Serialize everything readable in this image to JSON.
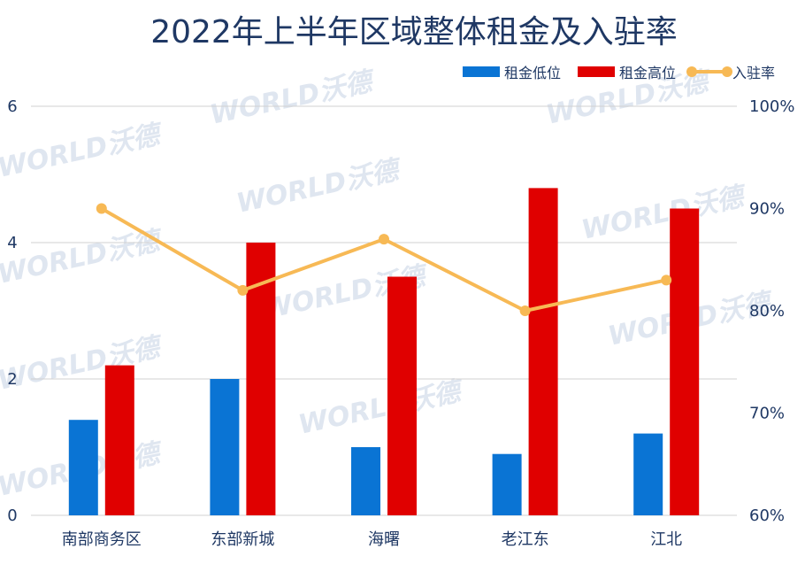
{
  "watermark": "WORLD沃德",
  "chart_data": {
    "type": "bar",
    "title": "2022年上半年区域整体租金及入驻率",
    "categories": [
      "南部商务区",
      "东部新城",
      "海曙",
      "老江东",
      "江北"
    ],
    "series": [
      {
        "name": "租金低位",
        "kind": "bar",
        "axis": "left",
        "color": "#0a74d4",
        "values": [
          1.4,
          2.0,
          1.0,
          0.9,
          1.2
        ]
      },
      {
        "name": "租金高位",
        "kind": "bar",
        "axis": "left",
        "color": "#e00000",
        "values": [
          2.2,
          4.0,
          3.5,
          4.8,
          4.5
        ]
      },
      {
        "name": "入驻率",
        "kind": "line",
        "axis": "right",
        "color": "#f7b955",
        "values": [
          90,
          82,
          87,
          80,
          83
        ]
      }
    ],
    "left_axis": {
      "ylim": [
        0,
        6
      ],
      "ticks": [
        "0",
        "2",
        "4",
        "6"
      ]
    },
    "right_axis": {
      "ylim": [
        60,
        100
      ],
      "ticks": [
        "60%",
        "70%",
        "80%",
        "90%",
        "100%"
      ]
    },
    "grid": true,
    "legend": "top-right"
  }
}
